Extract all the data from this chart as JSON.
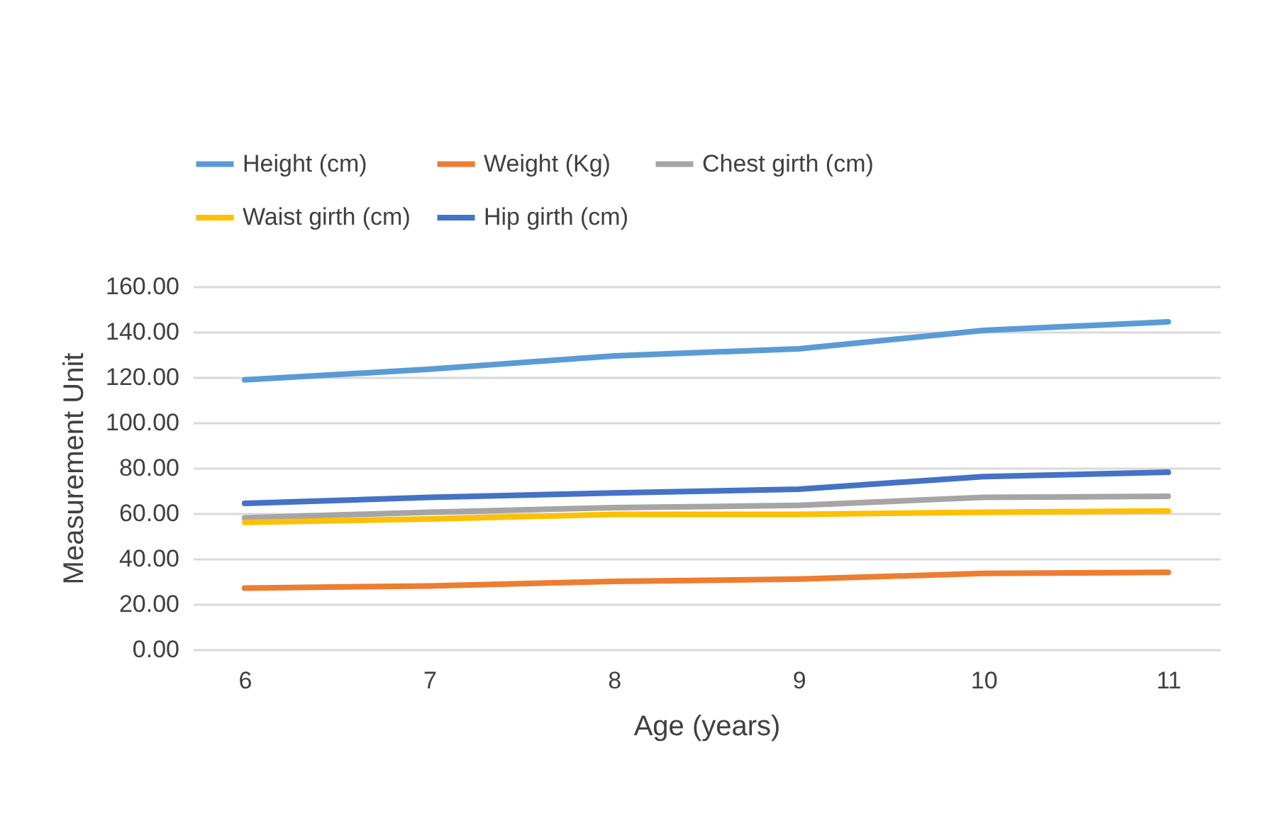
{
  "chart_data": {
    "type": "line",
    "xlabel": "Age (years)",
    "ylabel": "Measurement Unit",
    "categories": [
      "6",
      "7",
      "8",
      "9",
      "10",
      "11"
    ],
    "series": [
      {
        "name": "Height (cm)",
        "color": "#5b9bd5",
        "values": [
          118.8,
          123.5,
          129.4,
          132.5,
          140.6,
          144.4
        ]
      },
      {
        "name": "Weight (Kg)",
        "color": "#ed7d31",
        "values": [
          27,
          28,
          30,
          31,
          33.5,
          34
        ]
      },
      {
        "name": "Chest girth (cm)",
        "color": "#a5a5a5",
        "values": [
          58,
          60.5,
          62.5,
          63.5,
          67,
          67.5
        ]
      },
      {
        "name": "Waist girth (cm)",
        "color": "#ffc000",
        "values": [
          56,
          57.5,
          59.5,
          59.5,
          60.5,
          61
        ]
      },
      {
        "name": "Hip girth (cm)",
        "color": "#4472c4",
        "values": [
          64.4,
          67,
          69,
          70.6,
          76.2,
          78.1
        ]
      }
    ],
    "ylim": [
      0,
      160
    ],
    "yticks": [
      {
        "value": 0,
        "label": "0.00"
      },
      {
        "value": 20,
        "label": "20.00"
      },
      {
        "value": 40,
        "label": "40.00"
      },
      {
        "value": 60,
        "label": "60.00"
      },
      {
        "value": 80,
        "label": "80.00"
      },
      {
        "value": 100,
        "label": "100.00"
      },
      {
        "value": 120,
        "label": "120.00"
      },
      {
        "value": 140,
        "label": "140.00"
      },
      {
        "value": 160,
        "label": "160.00"
      }
    ],
    "grid": "y",
    "legend": "top",
    "marker": "none",
    "line_style": "solid"
  }
}
